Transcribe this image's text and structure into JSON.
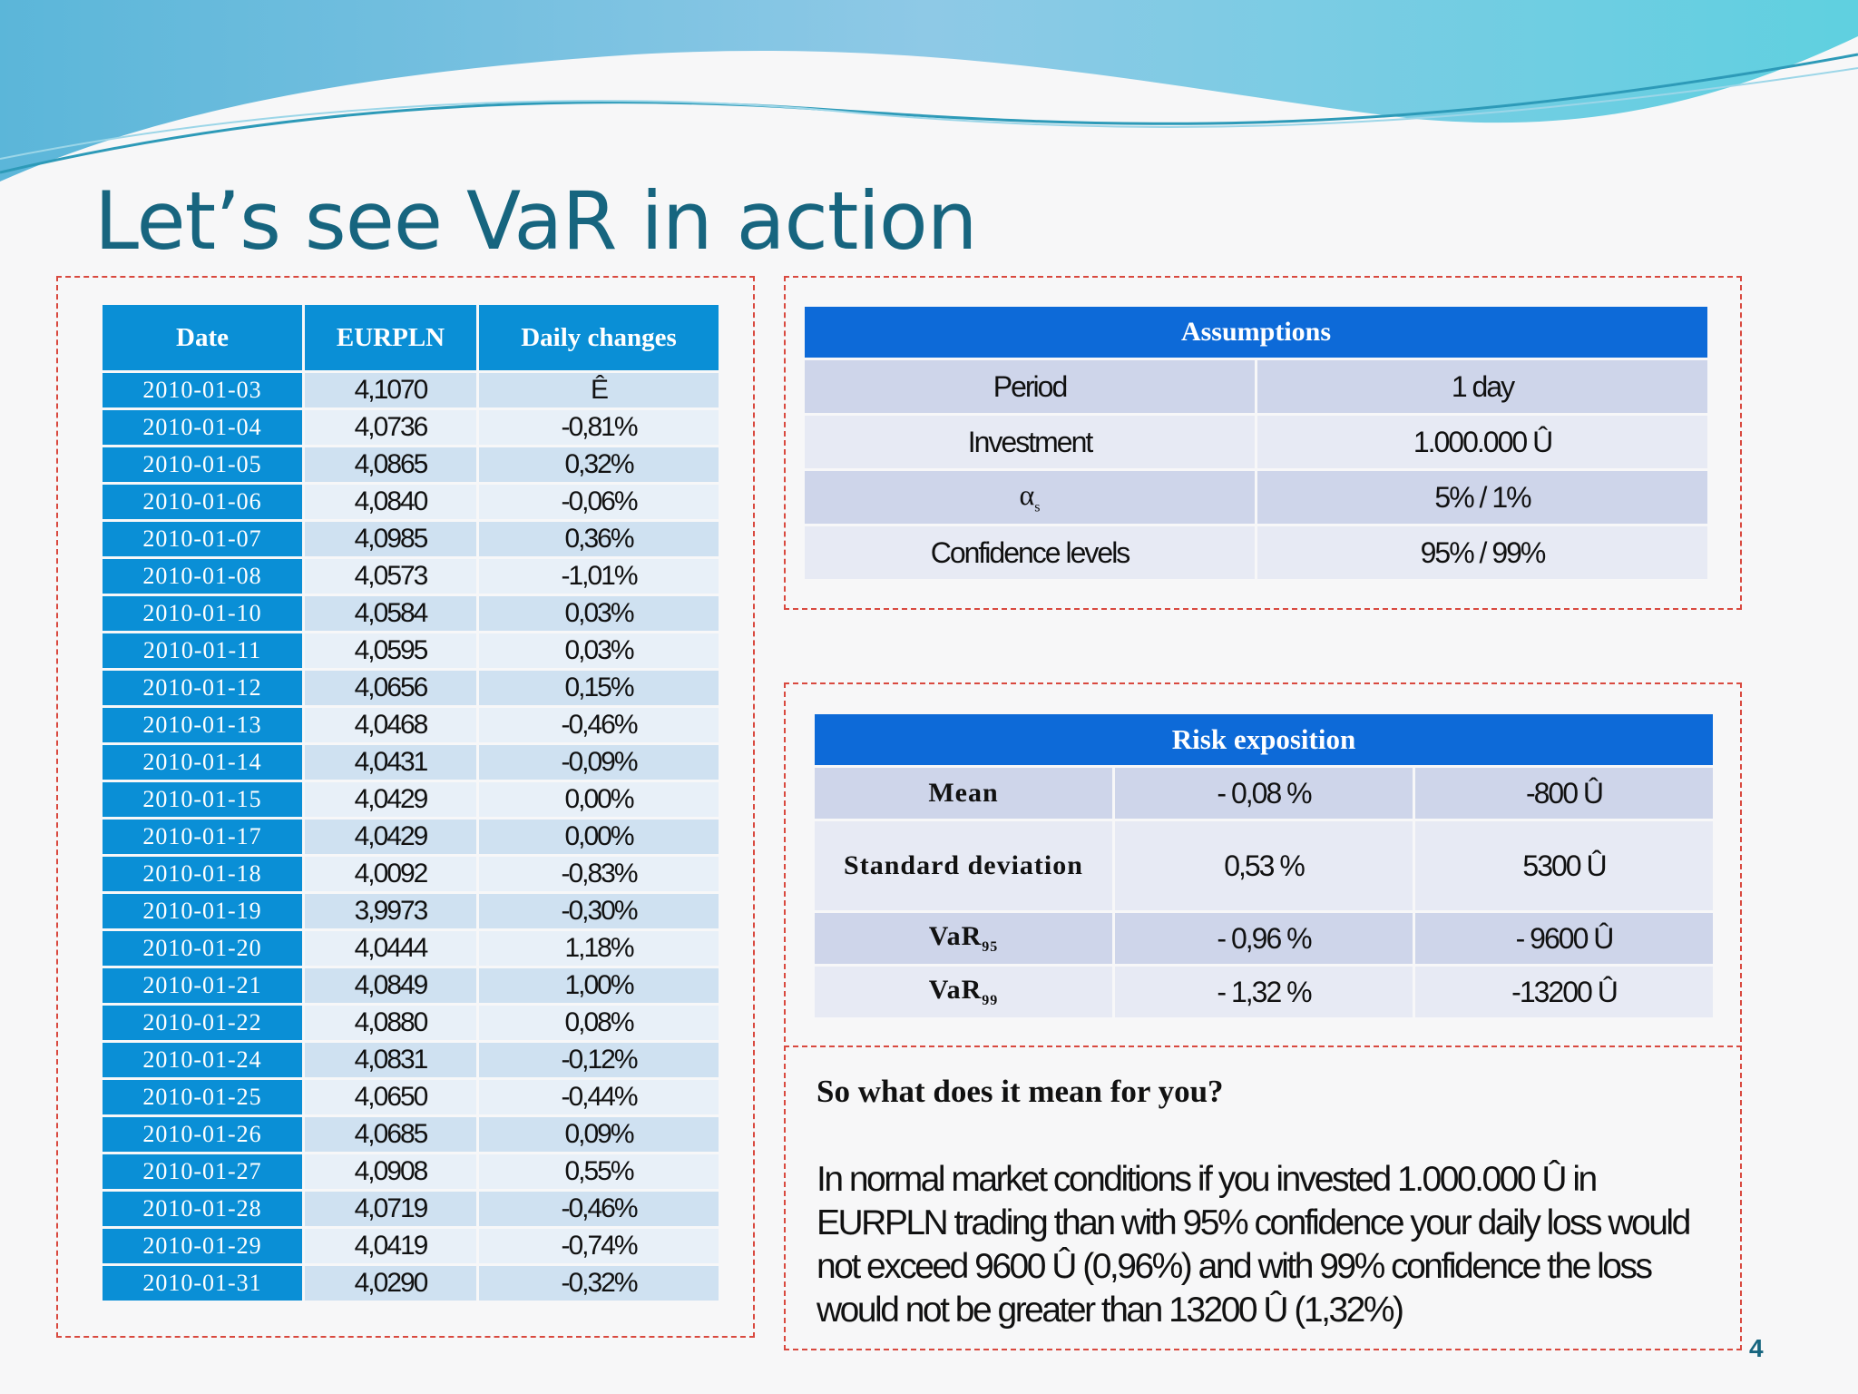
{
  "slide": {
    "title": "Let’s see VaR in action",
    "page_number": "4"
  },
  "data_table": {
    "headers": [
      "Date",
      "EURPLN",
      "Daily changes"
    ],
    "rows": [
      [
        "2010-01-03",
        "4,1070",
        "Ê"
      ],
      [
        "2010-01-04",
        "4,0736",
        "-0,81%"
      ],
      [
        "2010-01-05",
        "4,0865",
        "0,32%"
      ],
      [
        "2010-01-06",
        "4,0840",
        "-0,06%"
      ],
      [
        "2010-01-07",
        "4,0985",
        "0,36%"
      ],
      [
        "2010-01-08",
        "4,0573",
        "-1,01%"
      ],
      [
        "2010-01-10",
        "4,0584",
        "0,03%"
      ],
      [
        "2010-01-11",
        "4,0595",
        "0,03%"
      ],
      [
        "2010-01-12",
        "4,0656",
        "0,15%"
      ],
      [
        "2010-01-13",
        "4,0468",
        "-0,46%"
      ],
      [
        "2010-01-14",
        "4,0431",
        "-0,09%"
      ],
      [
        "2010-01-15",
        "4,0429",
        "0,00%"
      ],
      [
        "2010-01-17",
        "4,0429",
        "0,00%"
      ],
      [
        "2010-01-18",
        "4,0092",
        "-0,83%"
      ],
      [
        "2010-01-19",
        "3,9973",
        "-0,30%"
      ],
      [
        "2010-01-20",
        "4,0444",
        "1,18%"
      ],
      [
        "2010-01-21",
        "4,0849",
        "1,00%"
      ],
      [
        "2010-01-22",
        "4,0880",
        "0,08%"
      ],
      [
        "2010-01-24",
        "4,0831",
        "-0,12%"
      ],
      [
        "2010-01-25",
        "4,0650",
        "-0,44%"
      ],
      [
        "2010-01-26",
        "4,0685",
        "0,09%"
      ],
      [
        "2010-01-27",
        "4,0908",
        "0,55%"
      ],
      [
        "2010-01-28",
        "4,0719",
        "-0,46%"
      ],
      [
        "2010-01-29",
        "4,0419",
        "-0,74%"
      ],
      [
        "2010-01-31",
        "4,0290",
        "-0,32%"
      ]
    ]
  },
  "assumptions": {
    "header": "Assumptions",
    "rows": [
      [
        "Period",
        "1 day"
      ],
      [
        "Investment",
        "1.000.000 Û"
      ],
      [
        "α",
        "5% / 1%"
      ],
      [
        "Confidence levels",
        "95% / 99%"
      ]
    ],
    "alpha_subscript": "s"
  },
  "risk": {
    "header": "Risk exposition",
    "rows": [
      {
        "label": "Mean",
        "sub": "",
        "pct": "- 0,08 %",
        "amount": "-800 Û"
      },
      {
        "label": "Standard deviation",
        "sub": "",
        "pct": "0,53 %",
        "amount": "5300 Û"
      },
      {
        "label": "VaR",
        "sub": "95",
        "pct": "- 0,96 %",
        "amount": "- 9600 Û"
      },
      {
        "label": "VaR",
        "sub": "99",
        "pct": "- 1,32 %",
        "amount": "-13200 Û"
      }
    ]
  },
  "explanation": {
    "question": "So what does it mean for you?",
    "paragraph": "In normal market conditions if you invested 1.000.000 Û in EURPLN trading than with 95% confidence your daily loss would not exceed 9600 Û (0,96%) and with 99% confidence the loss would not be greater than 13200 Û (1,32%)"
  },
  "colors": {
    "title": "#17657f",
    "table_header_blue": "#0a8fd6",
    "box_header_blue": "#0d6ad8",
    "dashed_border": "#d9493f"
  }
}
